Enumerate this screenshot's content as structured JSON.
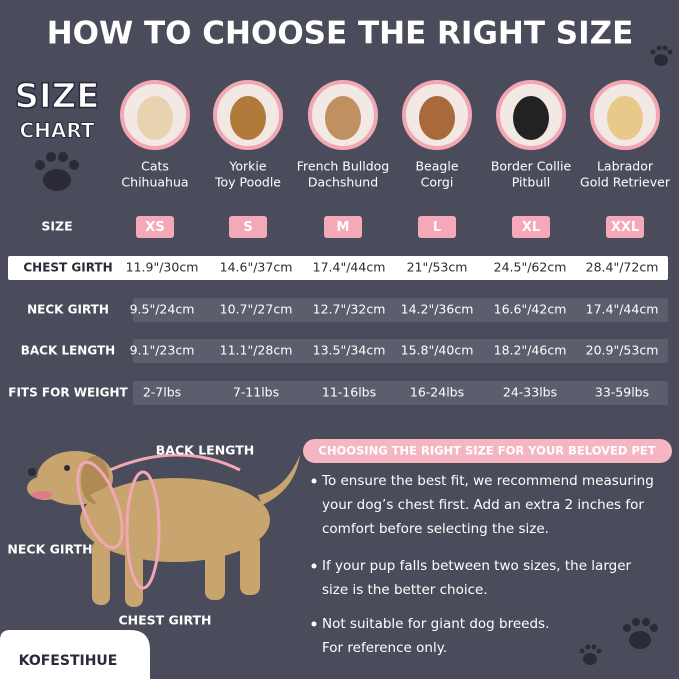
{
  "title": "HOW TO CHOOSE THE RIGHT SIZE",
  "badge": {
    "line1": "SIZE",
    "line2": "CHART"
  },
  "breeds": [
    [
      "Cats",
      "Chihuahua"
    ],
    [
      "Yorkie",
      "Toy Poodle"
    ],
    [
      "French Bulldog",
      "Dachshund"
    ],
    [
      "Beagle",
      "Corgi"
    ],
    [
      "Border Collie",
      "Pitbull"
    ],
    [
      "Labrador",
      "Gold Retriever"
    ]
  ],
  "sizes": {
    "label": "SIZE",
    "values": [
      "XS",
      "S",
      "M",
      "L",
      "XL",
      "XXL"
    ]
  },
  "table": {
    "rows": [
      {
        "label": "CHEST GIRTH",
        "cells": [
          "11.9\"/30cm",
          "14.6\"/37cm",
          "17.4\"/44cm",
          "21\"/53cm",
          "24.5\"/62cm",
          "28.4\"/72cm"
        ]
      },
      {
        "label": "NECK GIRTH",
        "cells": [
          "9.5\"/24cm",
          "10.7\"/27cm",
          "12.7\"/32cm",
          "14.2\"/36cm",
          "16.6\"/42cm",
          "17.4\"/44cm"
        ]
      },
      {
        "label": "BACK LENGTH",
        "cells": [
          "9.1\"/23cm",
          "11.1\"/28cm",
          "13.5\"/34cm",
          "15.8\"/40cm",
          "18.2\"/46cm",
          "20.9\"/53cm"
        ]
      },
      {
        "label": "FITS FOR WEIGHT",
        "cells": [
          "2-7lbs",
          "7-11lbs",
          "11-16lbs",
          "16-24lbs",
          "24-33lbs",
          "33-59lbs"
        ]
      }
    ]
  },
  "diagram": {
    "back": "BACK LENGTH",
    "neck": "NECK GIRTH",
    "chest": "CHEST GIRTH"
  },
  "tips": {
    "heading": "CHOOSING THE RIGHT SIZE FOR YOUR BELOVED PET",
    "items": [
      [
        "To ensure the best fit, we recommend measuring",
        "your dog’s chest first. Add an extra 2 inches for",
        "comfort before selecting the size."
      ],
      [
        "If your pup falls between two sizes, the larger",
        "size is the better choice."
      ],
      [
        "Not suitable for giant dog breeds.",
        "For reference only."
      ]
    ]
  },
  "brand": "KOFESTIHUE"
}
